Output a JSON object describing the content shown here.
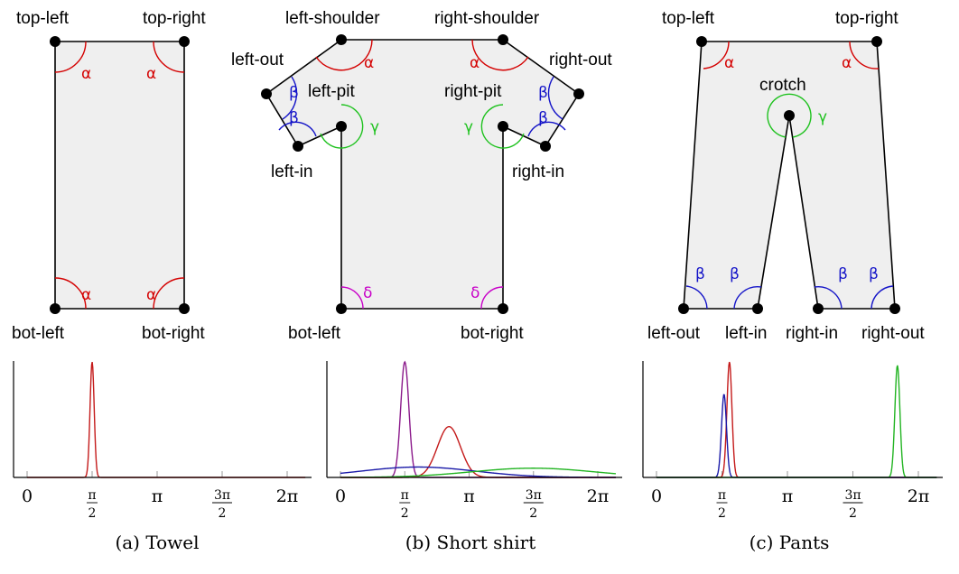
{
  "colors": {
    "alpha": "#d40000",
    "beta": "#1414c8",
    "gamma": "#1fc21f",
    "delta": "#c800c8",
    "purple": "#8b1a8b",
    "red_curve": "#c41a1a",
    "blue_curve": "#1a1aa8",
    "green_curve": "#22b422"
  },
  "greek": {
    "alpha": "α",
    "beta": "β",
    "gamma": "γ",
    "delta": "δ"
  },
  "panels": [
    {
      "caption": "(a) Towel",
      "nodes": [
        "top-left",
        "top-right",
        "bot-left",
        "bot-right"
      ]
    },
    {
      "caption": "(b) Short shirt",
      "nodes": [
        "left-shoulder",
        "right-shoulder",
        "left-out",
        "right-out",
        "left-pit",
        "right-pit",
        "left-in",
        "right-in",
        "bot-left",
        "bot-right"
      ]
    },
    {
      "caption": "(c) Pants",
      "nodes": [
        "top-left",
        "top-right",
        "crotch",
        "left-out",
        "left-in",
        "right-in",
        "right-out"
      ]
    }
  ],
  "axis_ticks": {
    "zero": "0",
    "half_pi_num": "π",
    "half_pi_den": "2",
    "pi": "π",
    "three_half_pi_num": "3π",
    "three_half_pi_den": "2",
    "two_pi": "2π"
  },
  "chart_data": [
    {
      "type": "line",
      "xlim": [
        0,
        6.2832
      ],
      "series": [
        {
          "color": "#c41a1a",
          "mu": 1.571,
          "sigma": 0.05,
          "peak": 1.0
        }
      ]
    },
    {
      "type": "line",
      "xlim": [
        0,
        6.2832
      ],
      "series": [
        {
          "color": "#8b1a8b",
          "mu": 1.571,
          "sigma": 0.1,
          "peak": 1.0
        },
        {
          "color": "#c41a1a",
          "mu": 2.65,
          "sigma": 0.28,
          "peak": 0.44
        },
        {
          "color": "#1a1aa8",
          "mu": 1.9,
          "sigma": 1.4,
          "peak": 0.09
        },
        {
          "color": "#22b422",
          "mu": 4.7,
          "sigma": 1.5,
          "peak": 0.08
        }
      ]
    },
    {
      "type": "line",
      "xlim": [
        0,
        6.2832
      ],
      "series": [
        {
          "color": "#c41a1a",
          "mu": 1.75,
          "sigma": 0.06,
          "peak": 1.0
        },
        {
          "color": "#1a1aa8",
          "mu": 1.62,
          "sigma": 0.06,
          "peak": 0.72
        },
        {
          "color": "#22b422",
          "mu": 5.78,
          "sigma": 0.06,
          "peak": 0.97
        }
      ]
    }
  ]
}
